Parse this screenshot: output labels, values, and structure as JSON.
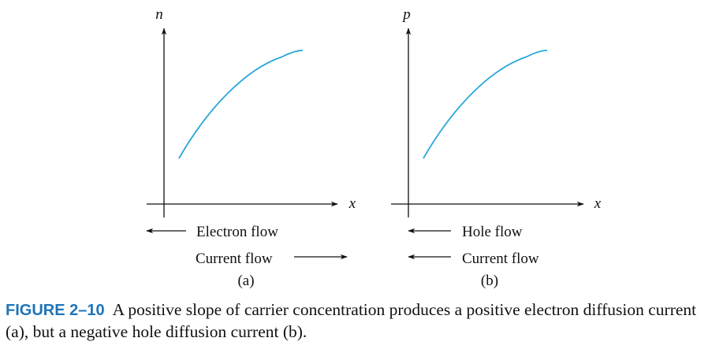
{
  "panels": [
    {
      "id": "a",
      "y_axis_label": "n",
      "x_axis_label": "x",
      "flow_label": "Electron flow",
      "current_label": "Current flow",
      "panel_label": "(a)"
    },
    {
      "id": "b",
      "y_axis_label": "p",
      "x_axis_label": "x",
      "flow_label": "Hole flow",
      "current_label": "Current flow",
      "panel_label": "(b)"
    }
  ],
  "caption": {
    "figure_label": "FIGURE 2–10",
    "text": "A positive slope of carrier concentration produces a positive electron diffusion current (a), but a negative hole diffusion current (b)."
  },
  "colors": {
    "curve": "#2aa7dc",
    "caption_label": "#1f74b8",
    "ink": "#111111"
  }
}
